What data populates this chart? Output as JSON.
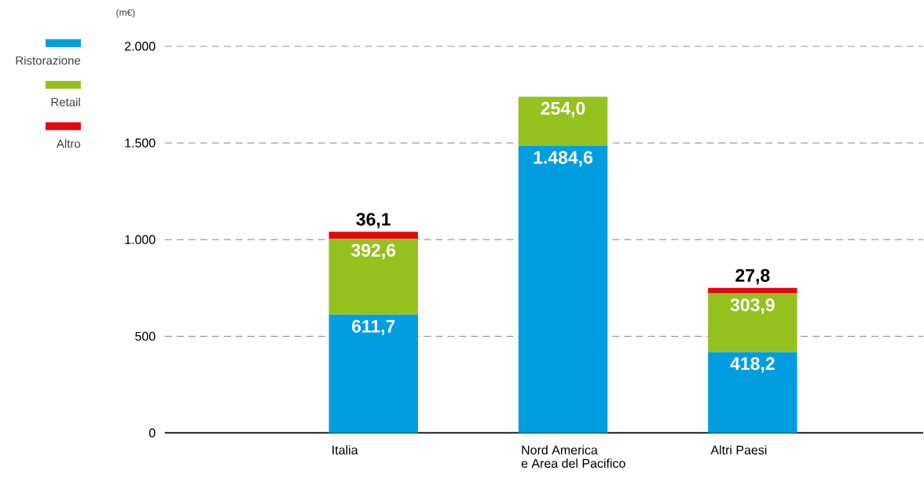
{
  "chart_data": {
    "type": "bar",
    "stacked": true,
    "categories": [
      "Italia",
      "Nord America\ne Area del Pacifico",
      "Altri Paesi"
    ],
    "ylabel": "(m€)",
    "series": [
      {
        "name": "Ristorazione",
        "color": "#009ee0",
        "values": [
          611.7,
          1484.6,
          418.2
        ],
        "value_labels": [
          "611,7",
          "1.484,6",
          "418,2"
        ]
      },
      {
        "name": "Retail",
        "color": "#95c11f",
        "values": [
          392.6,
          254.0,
          303.9
        ],
        "value_labels": [
          "392,6",
          "254,0",
          "303,9"
        ]
      },
      {
        "name": "Altro",
        "color": "#e30613",
        "values": [
          36.1,
          null,
          27.8
        ],
        "value_labels": [
          "36,1",
          null,
          "27,8"
        ]
      }
    ],
    "ylim": [
      0,
      2000
    ],
    "yticks": [
      {
        "value": 0,
        "label": "0"
      },
      {
        "value": 500,
        "label": "500"
      },
      {
        "value": 1000,
        "label": "1.000"
      },
      {
        "value": 1500,
        "label": "1.500"
      },
      {
        "value": 2000,
        "label": "2.000"
      }
    ],
    "grid": "y",
    "legend": "left"
  }
}
